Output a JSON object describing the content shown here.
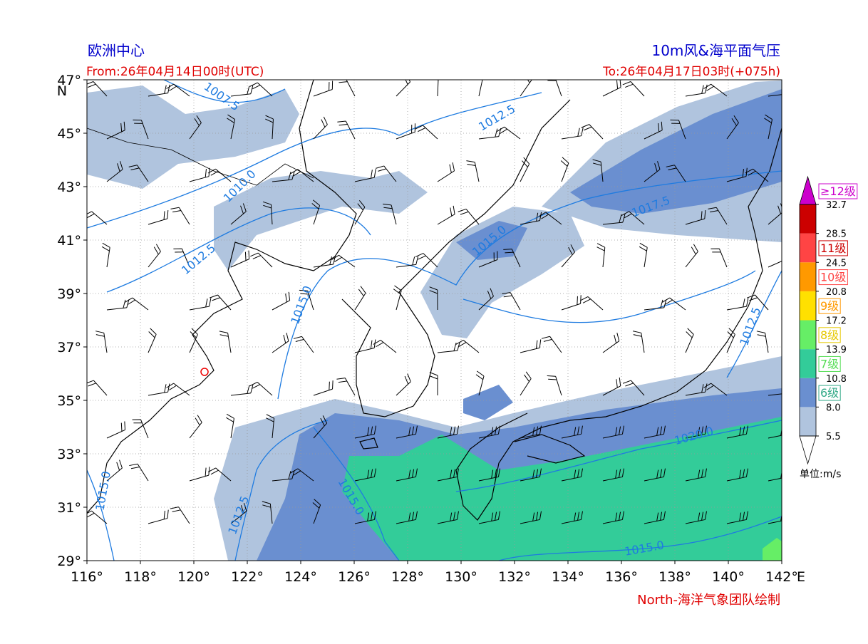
{
  "header": {
    "left_title": "欧洲中心",
    "right_title": "10m风&海平面气压",
    "from": "From:26年04月14日00时(UTC)",
    "to": "To:26年04月17日03时(+075h)"
  },
  "axes": {
    "xlim": [
      116,
      142
    ],
    "ylim": [
      29,
      47
    ],
    "xticks": [
      {
        "value": 116,
        "label": "116°"
      },
      {
        "value": 118,
        "label": "118°"
      },
      {
        "value": 120,
        "label": "120°"
      },
      {
        "value": 122,
        "label": "122°"
      },
      {
        "value": 124,
        "label": "124°"
      },
      {
        "value": 126,
        "label": "126°"
      },
      {
        "value": 128,
        "label": "128°"
      },
      {
        "value": 130,
        "label": "130°"
      },
      {
        "value": 132,
        "label": "132°"
      },
      {
        "value": 134,
        "label": "134°"
      },
      {
        "value": 136,
        "label": "136°"
      },
      {
        "value": 138,
        "label": "138°"
      },
      {
        "value": 140,
        "label": "140°"
      },
      {
        "value": 142,
        "label": "142°"
      }
    ],
    "yticks": [
      {
        "value": 29,
        "label": "29°"
      },
      {
        "value": 31,
        "label": "31°"
      },
      {
        "value": 33,
        "label": "33°"
      },
      {
        "value": 35,
        "label": "35°"
      },
      {
        "value": 37,
        "label": "37°"
      },
      {
        "value": 39,
        "label": "39°"
      },
      {
        "value": 41,
        "label": "41°"
      },
      {
        "value": 43,
        "label": "43°"
      },
      {
        "value": 45,
        "label": "45°"
      },
      {
        "value": 47,
        "label": "47°"
      }
    ],
    "x_unit": "E",
    "y_unit": "N",
    "grid": true
  },
  "contour_labels": [
    "1007.5",
    "1010.0",
    "1012.5",
    "1012.5",
    "1015.0",
    "1015.0",
    "1017.5",
    "1020.0",
    "1015.0",
    "1015.0",
    "1012.5",
    "1015.0",
    "1012.5"
  ],
  "colorbar": {
    "levels": [
      5.5,
      {
        "value": 8,
        "label": "8.0"
      },
      10.8,
      13.9,
      17.2,
      20.8,
      24.5,
      28.5,
      32.7
    ],
    "colors": [
      "#b0c4de",
      "#6a8fd0",
      "#33cc99",
      "#66ee66",
      "#ffe000",
      "#ff9900",
      "#ff4444",
      "#cc0000"
    ],
    "over_color": "#cc00cc",
    "grades": [
      {
        "label": "6级",
        "color": "#33aa88"
      },
      {
        "label": "7级",
        "color": "#55dd55"
      },
      {
        "label": "8级",
        "color": "#e6c800"
      },
      {
        "label": "9级",
        "color": "#ff9900"
      },
      {
        "label": "10级",
        "color": "#ff4444"
      },
      {
        "label": "11级",
        "color": "#cc0000"
      },
      {
        "label": "≥12级",
        "color": "#cc00cc"
      }
    ],
    "unit": "单位:m/s"
  },
  "credit": "North-海洋气象团队绘制"
}
